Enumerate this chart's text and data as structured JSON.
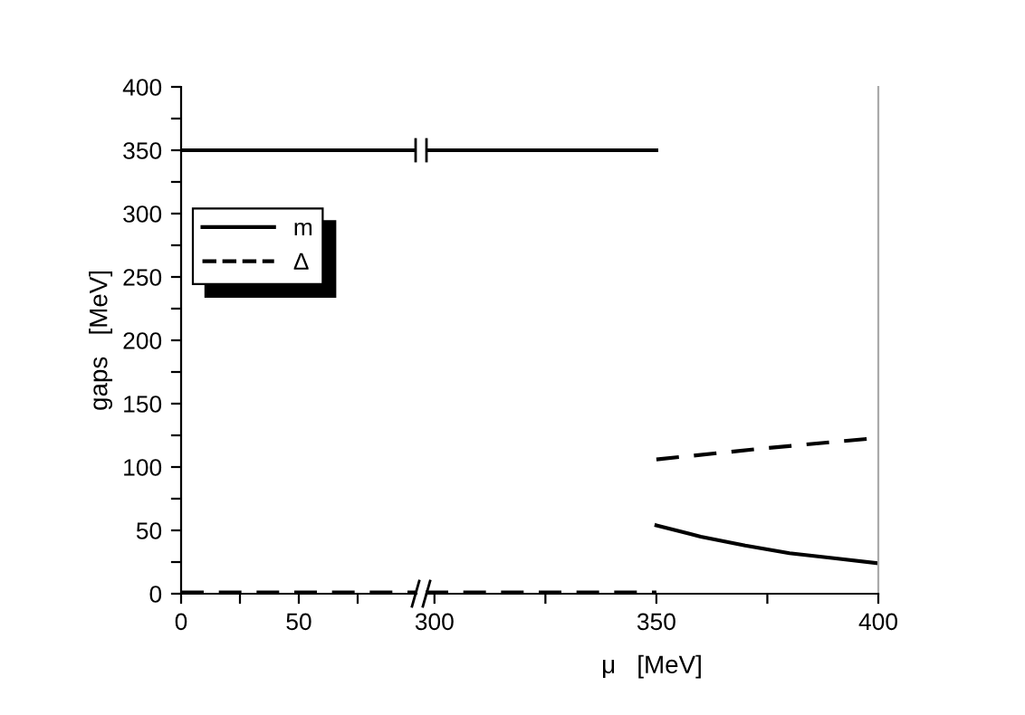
{
  "chart_data": [
    {
      "type": "line",
      "ylabel": "gaps   [MeV]",
      "xlim": [
        0,
        100
      ],
      "ylim": [
        0,
        400
      ],
      "xticks": [
        0,
        {
          "value": 25,
          "label": null
        },
        50,
        {
          "value": 75,
          "label": null
        }
      ],
      "yticks": [
        0,
        {
          "value": 25,
          "label": null
        },
        50,
        {
          "value": 75,
          "label": null
        },
        100,
        {
          "value": 125,
          "label": null
        },
        150,
        {
          "value": 175,
          "label": null
        },
        200,
        {
          "value": 225,
          "label": null
        },
        250,
        {
          "value": 275,
          "label": null
        },
        300,
        {
          "value": 325,
          "label": null
        },
        350,
        {
          "value": 375,
          "label": null
        },
        400
      ],
      "legend": "top left",
      "series": [
        {
          "name": "m",
          "color": "#000000",
          "line_style": "solid",
          "x": [
            0,
            100
          ],
          "values": [
            350,
            350
          ]
        },
        {
          "name": "Δ",
          "color": "#000000",
          "line_style": "dashed",
          "x": [
            0,
            100
          ],
          "values": [
            1,
            1
          ]
        }
      ]
    },
    {
      "type": "line",
      "xlabel": "μ   [MeV]",
      "xlim": [
        298,
        400
      ],
      "ylim": [
        0,
        400
      ],
      "tick_labels": "x",
      "xticks": [
        300,
        {
          "value": 325,
          "label": null
        },
        350,
        {
          "value": 375,
          "label": null
        },
        400
      ],
      "series": [
        {
          "color": "#000000",
          "line_style": "solid",
          "x": [
            298,
            350
          ],
          "values": [
            350,
            350
          ]
        },
        {
          "color": "#000000",
          "line_style": "dashed",
          "x": [
            298,
            350
          ],
          "values": [
            1,
            1
          ]
        },
        {
          "color": "#000000",
          "line_style": "solid",
          "x": [
            350,
            360,
            370,
            380,
            390,
            400
          ],
          "values": [
            54,
            45,
            38,
            32,
            28,
            24
          ]
        },
        {
          "color": "#000000",
          "line_style": "dashed",
          "x": [
            350,
            375,
            400
          ],
          "values": [
            106,
            115,
            123
          ]
        }
      ]
    }
  ]
}
